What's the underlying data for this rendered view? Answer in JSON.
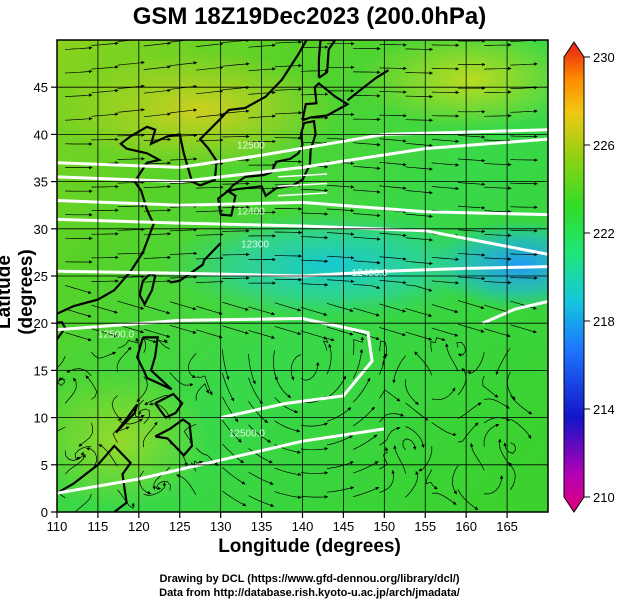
{
  "title": "GSM 18Z19Dec2023 (200.0hPa)",
  "axes": {
    "xlabel": "Longitude (degrees)",
    "ylabel": "Latitude  (degrees)",
    "xlim": [
      110,
      170
    ],
    "ylim": [
      0,
      50
    ],
    "xticks": [
      110,
      115,
      120,
      125,
      130,
      135,
      140,
      145,
      150,
      155,
      160,
      165
    ],
    "yticks": [
      0,
      5,
      10,
      15,
      20,
      25,
      30,
      35,
      40,
      45
    ],
    "grid": true
  },
  "colorbar": {
    "ticks": [
      230,
      226,
      222,
      218,
      214,
      210
    ],
    "range": [
      210,
      230
    ],
    "colors": [
      "#e2007a",
      "#1414c8",
      "#1ea0ff",
      "#14dcc8",
      "#1ee628",
      "#8cd214",
      "#f0c814",
      "#ff8c00",
      "#e61e14"
    ]
  },
  "contour_labels": [
    {
      "text": "12500",
      "lon": 132,
      "lat": 38.5
    },
    {
      "text": "12400",
      "lon": 132,
      "lat": 31.5
    },
    {
      "text": "12300",
      "lon": 132.5,
      "lat": 28
    },
    {
      "text": "12400.0",
      "lon": 146,
      "lat": 25
    },
    {
      "text": "12500.0",
      "lon": 115,
      "lat": 18.5
    },
    {
      "text": "12500.0",
      "lon": 131,
      "lat": 8
    }
  ],
  "credits": {
    "line1": "Drawing by DCL (https://www.gfd-dennou.org/library/dcl/)",
    "line2": "Data from http://database.rish.kyoto-u.ac.jp/arch/jmadata/"
  }
}
